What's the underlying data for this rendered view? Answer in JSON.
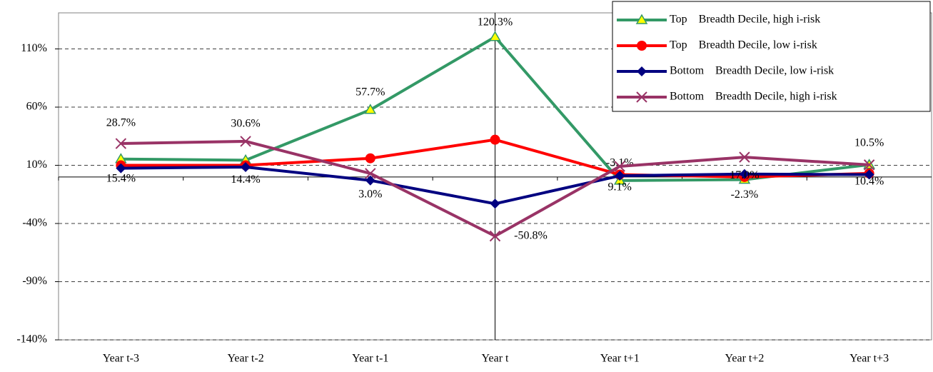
{
  "chart_data": {
    "type": "line",
    "categories": [
      "Year t-3",
      "Year t-2",
      "Year t-1",
      "Year t",
      "Year t+1",
      "Year t+2",
      "Year t+3"
    ],
    "ylim": [
      -140,
      141
    ],
    "yticks": [
      {
        "value": -140,
        "label": "-140%"
      },
      {
        "value": -90,
        "label": "-90%"
      },
      {
        "value": -40,
        "label": "-40%"
      },
      {
        "value": 10,
        "label": "10%"
      },
      {
        "value": 60,
        "label": "60%"
      },
      {
        "value": 110,
        "label": "110%"
      }
    ],
    "grid": true,
    "legend": "top-right",
    "series": [
      {
        "name": "Top    Breadth Decile, high i-risk",
        "color": "#339966",
        "marker": "triangle",
        "values": [
          15.4,
          14.4,
          57.7,
          120.3,
          -3.1,
          -2.3,
          10.5
        ],
        "value_labels": [
          "15.4%",
          "14.4%",
          "57.7%",
          "120.3%",
          "-3.1%",
          "-2.3%",
          "10.5%"
        ]
      },
      {
        "name": "Top    Breadth Decile, low i-risk",
        "color": "#ff0000",
        "marker": "circle",
        "values": [
          10,
          10,
          16,
          32,
          2,
          0,
          3
        ]
      },
      {
        "name": "Bottom    Breadth Decile, low i-risk",
        "color": "#000080",
        "marker": "diamond",
        "values": [
          7.5,
          8.5,
          -3,
          -23,
          1,
          2.5,
          2
        ]
      },
      {
        "name": "Bottom    Breadth Decile, high i-risk",
        "color": "#993366",
        "marker": "x",
        "values": [
          28.7,
          30.6,
          3.0,
          -50.8,
          9.1,
          17.0,
          10.4
        ],
        "value_labels": [
          "28.7%",
          "30.6%",
          "3.0%",
          "-50.8%",
          "9.1%",
          "17.0%",
          "10.4%"
        ]
      }
    ]
  }
}
